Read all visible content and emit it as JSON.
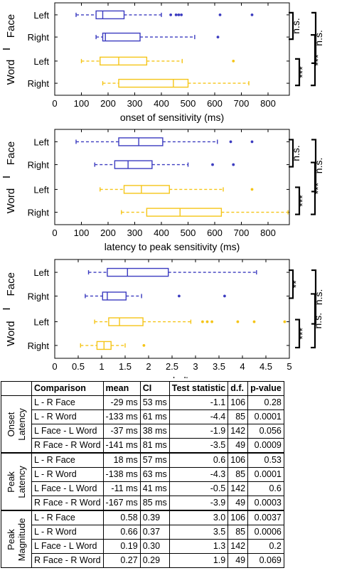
{
  "chart_data": [
    {
      "type": "boxplot",
      "xlabel": "onset of sensitivity (ms)",
      "xlim": [
        0,
        880
      ],
      "xticks": [
        0,
        100,
        200,
        300,
        400,
        500,
        600,
        700,
        800
      ],
      "groups": [
        "Face",
        "Word"
      ],
      "rows": [
        {
          "group": "Face",
          "label": "Left",
          "color": "#3c3cc0",
          "whisker_low": 80,
          "q1": 155,
          "median": 180,
          "q3": 260,
          "whisker_high": 400,
          "outliers": [
            435,
            455,
            465,
            475,
            620,
            740
          ]
        },
        {
          "group": "Face",
          "label": "Right",
          "color": "#3c3cc0",
          "whisker_low": 155,
          "q1": 180,
          "median": 190,
          "q3": 320,
          "whisker_high": 525,
          "outliers": [
            612
          ]
        },
        {
          "group": "Word",
          "label": "Left",
          "color": "#f5c518",
          "whisker_low": 100,
          "q1": 170,
          "median": 240,
          "q3": 345,
          "whisker_high": 478,
          "outliers": [
            670
          ]
        },
        {
          "group": "Word",
          "label": "Right",
          "color": "#f5c518",
          "whisker_low": 180,
          "q1": 240,
          "median": 445,
          "q3": 500,
          "whisker_high": 728,
          "outliers": []
        }
      ],
      "significance": [
        "n.s.",
        "n.s.",
        "***",
        "***"
      ]
    },
    {
      "type": "boxplot",
      "xlabel": "latency to peak sensitivity (ms)",
      "xlim": [
        0,
        880
      ],
      "xticks": [
        0,
        100,
        200,
        300,
        400,
        500,
        600,
        700,
        800
      ],
      "groups": [
        "Face",
        "Word"
      ],
      "rows": [
        {
          "group": "Face",
          "label": "Left",
          "color": "#3c3cc0",
          "whisker_low": 80,
          "q1": 240,
          "median": 315,
          "q3": 405,
          "whisker_high": 610,
          "outliers": [
            660,
            740
          ]
        },
        {
          "group": "Face",
          "label": "Right",
          "color": "#3c3cc0",
          "whisker_low": 150,
          "q1": 225,
          "median": 275,
          "q3": 365,
          "whisker_high": 500,
          "outliers": [
            592,
            670
          ]
        },
        {
          "group": "Word",
          "label": "Left",
          "color": "#f5c518",
          "whisker_low": 170,
          "q1": 260,
          "median": 325,
          "q3": 430,
          "whisker_high": 632,
          "outliers": [
            740
          ]
        },
        {
          "group": "Word",
          "label": "Right",
          "color": "#f5c518",
          "whisker_low": 250,
          "q1": 345,
          "median": 470,
          "q3": 625,
          "whisker_high": 875,
          "outliers": []
        }
      ],
      "significance": [
        "n.s.",
        "n.s.",
        "***",
        "***"
      ]
    },
    {
      "type": "boxplot",
      "xlabel": "peak d'",
      "xlim": [
        0,
        5
      ],
      "xticks": [
        0,
        0.5,
        1,
        1.5,
        2,
        2.5,
        3,
        3.5,
        4,
        4.5,
        5
      ],
      "groups": [
        "Face",
        "Word"
      ],
      "rows": [
        {
          "group": "Face",
          "label": "Left",
          "color": "#3c3cc0",
          "whisker_low": 0.72,
          "q1": 1.12,
          "median": 1.55,
          "q3": 2.42,
          "whisker_high": 4.3,
          "outliers": []
        },
        {
          "group": "Face",
          "label": "Right",
          "color": "#3c3cc0",
          "whisker_low": 0.65,
          "q1": 1.02,
          "median": 1.12,
          "q3": 1.52,
          "whisker_high": 1.85,
          "outliers": [
            2.65,
            3.62
          ]
        },
        {
          "group": "Word",
          "label": "Left",
          "color": "#f5c518",
          "whisker_low": 0.85,
          "q1": 1.15,
          "median": 1.38,
          "q3": 1.88,
          "whisker_high": 2.9,
          "outliers": [
            3.15,
            3.25,
            3.35,
            3.9,
            4.25,
            4.9
          ]
        },
        {
          "group": "Word",
          "label": "Right",
          "color": "#f5c518",
          "whisker_low": 0.55,
          "q1": 0.9,
          "median": 1.05,
          "q3": 1.2,
          "whisker_high": 1.5,
          "outliers": [
            1.9
          ]
        }
      ],
      "significance": [
        "**",
        "n.s.",
        "n.s.",
        "***"
      ]
    }
  ],
  "table": {
    "headers": [
      "Comparison",
      "mean",
      "CI",
      "Test statistic",
      "d.f.",
      "p-value"
    ],
    "sections": [
      {
        "label_lines": [
          "Onset",
          "Latency"
        ],
        "rows": [
          [
            "L - R Face",
            "-29 ms",
            "53 ms",
            "-1.1",
            "106",
            "0.28"
          ],
          [
            "L - R Word",
            "-133 ms",
            "61 ms",
            "-4.4",
            "85",
            "0.0001"
          ],
          [
            "L Face - L Word",
            "-37 ms",
            "38 ms",
            "-1.9",
            "142",
            "0.056"
          ],
          [
            "R Face - R Word",
            "-141 ms",
            "81 ms",
            "-3.5",
            "49",
            "0.0009"
          ]
        ]
      },
      {
        "label_lines": [
          "Peak",
          "Latency"
        ],
        "rows": [
          [
            "L - R Face",
            "18 ms",
            "57 ms",
            "0.6",
            "106",
            "0.53"
          ],
          [
            "L - R Word",
            "-138 ms",
            "63 ms",
            "-4.3",
            "85",
            "0.0001"
          ],
          [
            "L Face - L Word",
            "-11 ms",
            "41 ms",
            "-0.5",
            "142",
            "0.6"
          ],
          [
            "R Face - R Word",
            "-167 ms",
            "85 ms",
            "-3.9",
            "49",
            "0.0003"
          ]
        ]
      },
      {
        "label_lines": [
          "Peak",
          "Magnitude"
        ],
        "rows": [
          [
            "L - R Face",
            "0.58",
            "0.39",
            "3.0",
            "106",
            "0.0037"
          ],
          [
            "L - R Word",
            "0.66",
            "0.37",
            "3.5",
            "85",
            "0.0006"
          ],
          [
            "L Face - L Word",
            "0.19",
            "0.30",
            "1.3",
            "142",
            "0.2"
          ],
          [
            "R Face - R Word",
            "0.27",
            "0.29",
            "1.9",
            "49",
            "0.069"
          ]
        ]
      }
    ]
  }
}
